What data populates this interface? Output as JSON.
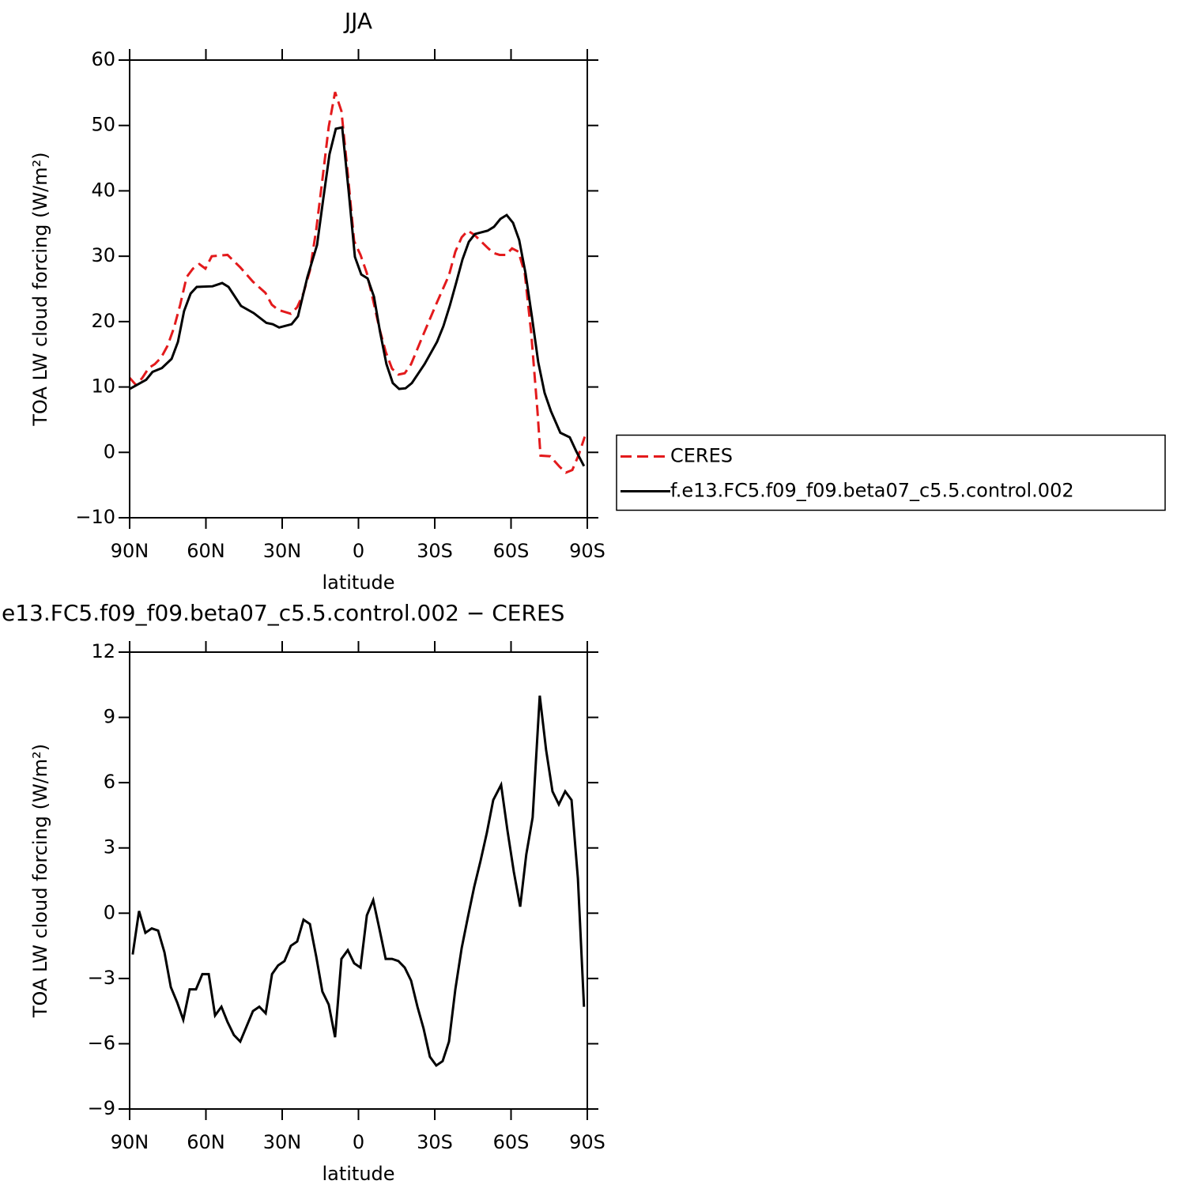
{
  "chart_data": [
    {
      "type": "line",
      "title": "JJA",
      "xlabel": "latitude",
      "ylabel": "TOA LW cloud forcing (W/m²)",
      "xlim": [
        90,
        -90
      ],
      "xticks": [
        {
          "value": 90,
          "label": "90N"
        },
        {
          "value": 60,
          "label": "60N"
        },
        {
          "value": 30,
          "label": "30N"
        },
        0,
        {
          "value": -30,
          "label": "30S"
        },
        {
          "value": -60,
          "label": "60S"
        },
        {
          "value": -90,
          "label": "90S"
        }
      ],
      "ylim": [
        -10,
        60
      ],
      "yticks": [
        {
          "value": -10,
          "label": "−10"
        },
        0,
        10,
        20,
        30,
        40,
        50,
        60
      ],
      "legend": "right",
      "series": [
        {
          "name": "CERES",
          "color": "#e31a1c",
          "linestyle": "dashed",
          "x": [
            90,
            87.5,
            85,
            82.5,
            80.1,
            77.6,
            75.1,
            72.6,
            70.1,
            67.6,
            65.1,
            62.6,
            60.2,
            57.7,
            51.5,
            46.5,
            41.5,
            36.6,
            34.1,
            31.6,
            26.6,
            24.1,
            21.6,
            19.1,
            16.6,
            14.1,
            11.7,
            9.2,
            6.7,
            4.2,
            1.7,
            -0.8,
            -3.3,
            -5.8,
            -8.2,
            -10.7,
            -13.2,
            -15.7,
            -18.2,
            -20.7,
            -25.6,
            -30.6,
            -35.6,
            -38.1,
            -40.6,
            -43.0,
            -45.5,
            -50.5,
            -53.0,
            -55.5,
            -58.0,
            -60.4,
            -62.9,
            -65.4,
            -67.9,
            -70.4,
            -71.6,
            -75.4,
            -79.1,
            -81.6,
            -84.1,
            -86.6,
            -89
          ],
          "values": [
            11.4,
            10.3,
            11.4,
            12.9,
            13.5,
            14.5,
            16.3,
            19.0,
            22.6,
            26.8,
            28.1,
            28.8,
            28.1,
            30.0,
            30.2,
            28.3,
            26.1,
            24.4,
            22.6,
            21.8,
            21.2,
            22.2,
            24.4,
            27.8,
            34.1,
            42.0,
            49.8,
            55.1,
            52.2,
            42.6,
            32.3,
            30.2,
            27.4,
            23.2,
            19.0,
            15.4,
            12.8,
            11.9,
            12.1,
            13.5,
            18.1,
            22.7,
            27.1,
            30.7,
            32.9,
            33.9,
            33.3,
            31.4,
            30.5,
            30.2,
            30.2,
            31.2,
            30.7,
            27.4,
            18.4,
            6.3,
            -0.5,
            -0.6,
            -2.2,
            -3.1,
            -2.7,
            -0.4,
            2.4
          ]
        },
        {
          "name": "f.e13.FC5.f09_f09.beta07_c5.5.control.002",
          "color": "#000000",
          "linestyle": "solid",
          "x": [
            90,
            83.5,
            81,
            77.3,
            73.5,
            71,
            68.6,
            66,
            63.6,
            57.4,
            53.6,
            51.1,
            46.2,
            41.2,
            36.2,
            33.7,
            31.2,
            26.3,
            23.8,
            20.1,
            16.3,
            13.8,
            11.4,
            8.9,
            6.4,
            3.9,
            1.4,
            -1.1,
            -3.6,
            -6.1,
            -8.5,
            -11,
            -13.5,
            -16,
            -18.5,
            -21,
            -26,
            -30.9,
            -33.4,
            -35.9,
            -38.4,
            -40.9,
            -43.4,
            -45.8,
            -50.8,
            -53.3,
            -55.8,
            -58.3,
            -60.8,
            -63.2,
            -65.7,
            -68.2,
            -70.7,
            -73.2,
            -75.7,
            -79.4,
            -83.1,
            -85.6,
            -88.7
          ],
          "values": [
            9.7,
            11.1,
            12.3,
            12.9,
            14.3,
            16.9,
            21.6,
            24.3,
            25.3,
            25.4,
            25.9,
            25.3,
            22.4,
            21.3,
            19.8,
            19.6,
            19.1,
            19.6,
            20.8,
            26.8,
            31.7,
            38.9,
            45.6,
            49.5,
            49.7,
            40.1,
            29.9,
            27.2,
            26.6,
            23.8,
            18.4,
            13.5,
            10.6,
            9.7,
            9.8,
            10.6,
            13.5,
            16.9,
            19.3,
            22.4,
            25.9,
            29.5,
            32.2,
            33.4,
            33.9,
            34.5,
            35.7,
            36.3,
            35.1,
            32.5,
            27.4,
            20.8,
            13.8,
            9.1,
            6.3,
            3.0,
            2.3,
            0.2,
            -2.1
          ]
        }
      ]
    },
    {
      "type": "line",
      "title": "e13.FC5.f09_f09.beta07_c5.5.control.002 − CERES",
      "xlabel": "latitude",
      "ylabel": "TOA LW cloud forcing (W/m²)",
      "xlim": [
        90,
        -90
      ],
      "xticks": [
        {
          "value": 90,
          "label": "90N"
        },
        {
          "value": 60,
          "label": "60N"
        },
        {
          "value": 30,
          "label": "30N"
        },
        0,
        {
          "value": -30,
          "label": "30S"
        },
        {
          "value": -60,
          "label": "60S"
        },
        {
          "value": -90,
          "label": "90S"
        }
      ],
      "ylim": [
        -9,
        12
      ],
      "yticks": [
        {
          "value": -9,
          "label": "−9"
        },
        {
          "value": -6,
          "label": "−6"
        },
        {
          "value": -3,
          "label": "−3"
        },
        0,
        3,
        6,
        9,
        12
      ],
      "series": [
        {
          "color": "#000000",
          "linestyle": "solid",
          "x": [
            88.8,
            86.3,
            83.8,
            81.3,
            78.8,
            76.3,
            73.8,
            71.3,
            68.9,
            66.4,
            63.9,
            61.4,
            58.9,
            56.4,
            53.9,
            51.5,
            49.0,
            46.5,
            44.0,
            41.5,
            39.0,
            36.5,
            34.0,
            31.6,
            29.1,
            26.6,
            24.1,
            21.6,
            19.1,
            16.6,
            14.2,
            11.7,
            9.2,
            6.7,
            4.2,
            1.7,
            -0.8,
            -3.3,
            -5.8,
            -8.2,
            -10.7,
            -13.2,
            -15.7,
            -18.2,
            -20.7,
            -23.2,
            -25.6,
            -28.1,
            -30.6,
            -33.1,
            -35.6,
            -38.1,
            -40.6,
            -43.0,
            -45.5,
            -48.0,
            -50.5,
            -53.0,
            -56.1,
            -58.6,
            -61.1,
            -63.6,
            -66.0,
            -68.5,
            -71.3,
            -73.8,
            -76.3,
            -78.8,
            -81.3,
            -83.8,
            -86.3,
            -88.7
          ],
          "values": [
            -1.9,
            0.1,
            -0.9,
            -0.7,
            -0.8,
            -1.8,
            -3.4,
            -4.1,
            -4.9,
            -3.5,
            -3.5,
            -2.8,
            -2.8,
            -4.7,
            -4.3,
            -5.0,
            -5.6,
            -5.9,
            -5.2,
            -4.5,
            -4.3,
            -4.6,
            -2.8,
            -2.4,
            -2.2,
            -1.5,
            -1.3,
            -0.3,
            -0.5,
            -2.0,
            -3.6,
            -4.2,
            -5.7,
            -2.1,
            -1.7,
            -2.3,
            -2.5,
            -0.1,
            0.6,
            -0.7,
            -2.1,
            -2.1,
            -2.2,
            -2.5,
            -3.1,
            -4.3,
            -5.3,
            -6.6,
            -7.0,
            -6.8,
            -5.9,
            -3.5,
            -1.6,
            -0.2,
            1.2,
            2.4,
            3.7,
            5.2,
            5.9,
            3.8,
            1.9,
            0.3,
            2.7,
            4.4,
            10.0,
            7.5,
            5.6,
            5.0,
            5.6,
            5.2,
            1.6,
            -4.3
          ]
        }
      ]
    }
  ]
}
